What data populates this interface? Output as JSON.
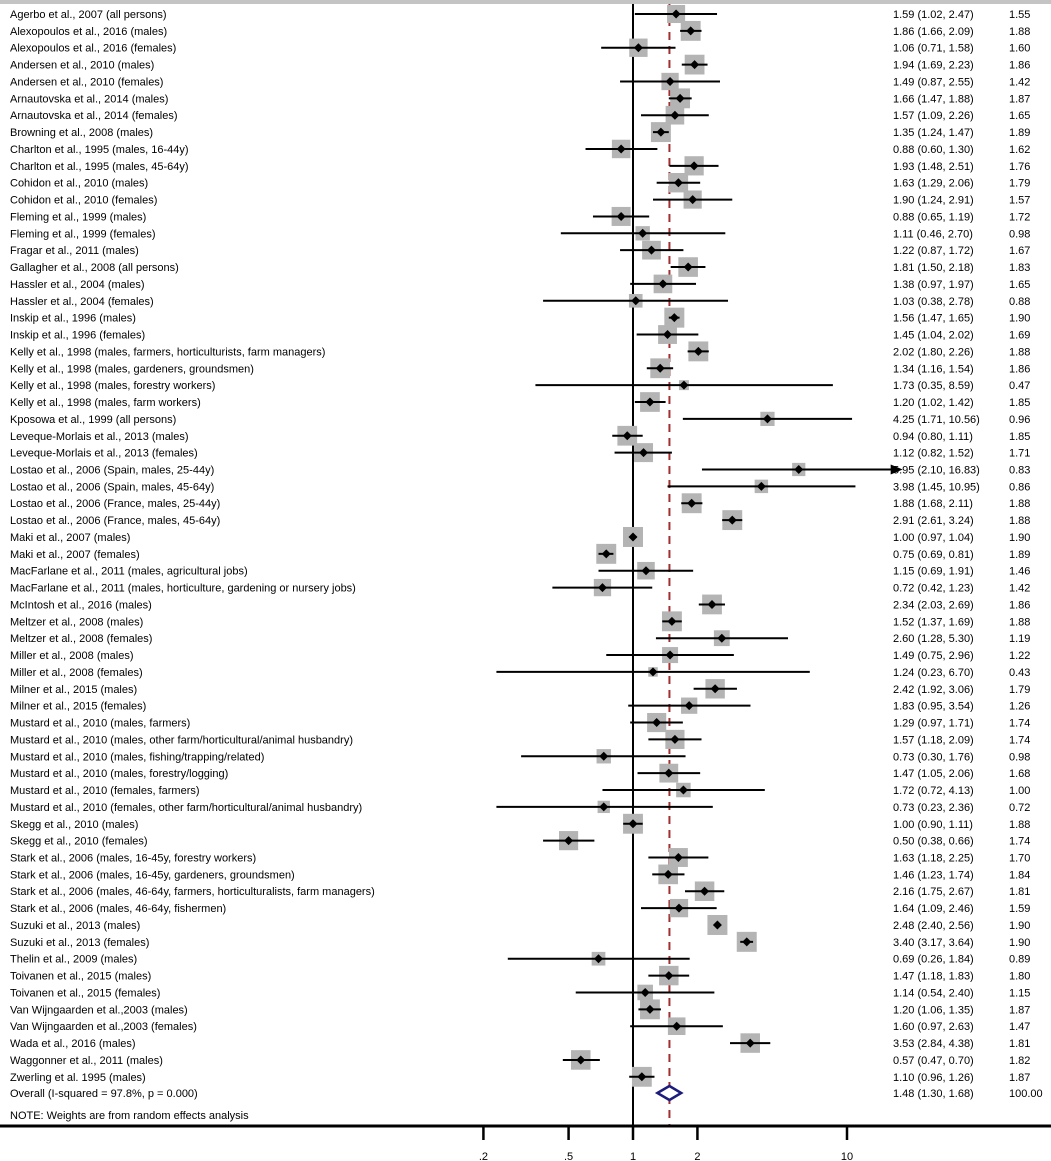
{
  "chart_data": {
    "type": "forest",
    "scale": "log",
    "xticks": [
      0.2,
      0.5,
      1,
      2,
      10
    ],
    "xtick_labels": [
      ".2",
      ".5",
      "1",
      "2",
      "10"
    ],
    "null_line": 1,
    "colors": {
      "box": "#b4b4b4",
      "ci": "#000000",
      "overall_diamond": "#1c1c7c",
      "pooled_line": "#a03030"
    },
    "studies": [
      {
        "label": "Agerbo et al., 2007 (all persons)",
        "es": 1.59,
        "lo": 1.02,
        "hi": 2.47,
        "es_ci": "1.59 (1.02, 2.47)",
        "weight": "1.55"
      },
      {
        "label": "Alexopoulos et al., 2016 (males)",
        "es": 1.86,
        "lo": 1.66,
        "hi": 2.09,
        "es_ci": "1.86 (1.66, 2.09)",
        "weight": "1.88"
      },
      {
        "label": "Alexopoulos et al., 2016 (females)",
        "es": 1.06,
        "lo": 0.71,
        "hi": 1.58,
        "es_ci": "1.06 (0.71, 1.58)",
        "weight": "1.60"
      },
      {
        "label": "Andersen et al., 2010 (males)",
        "es": 1.94,
        "lo": 1.69,
        "hi": 2.23,
        "es_ci": "1.94 (1.69, 2.23)",
        "weight": "1.86"
      },
      {
        "label": "Andersen et al., 2010 (females)",
        "es": 1.49,
        "lo": 0.87,
        "hi": 2.55,
        "es_ci": "1.49 (0.87, 2.55)",
        "weight": "1.42"
      },
      {
        "label": "Arnautovska et al., 2014 (males)",
        "es": 1.66,
        "lo": 1.47,
        "hi": 1.88,
        "es_ci": "1.66 (1.47, 1.88)",
        "weight": "1.87"
      },
      {
        "label": "Arnautovska et al., 2014 (females)",
        "es": 1.57,
        "lo": 1.09,
        "hi": 2.26,
        "es_ci": "1.57 (1.09, 2.26)",
        "weight": "1.65"
      },
      {
        "label": "Browning et al., 2008 (males)",
        "es": 1.35,
        "lo": 1.24,
        "hi": 1.47,
        "es_ci": "1.35 (1.24, 1.47)",
        "weight": "1.89"
      },
      {
        "label": "Charlton et al., 1995 (males, 16-44y)",
        "es": 0.88,
        "lo": 0.6,
        "hi": 1.3,
        "es_ci": "0.88 (0.60, 1.30)",
        "weight": "1.62"
      },
      {
        "label": "Charlton et al., 1995 (males, 45-64y)",
        "es": 1.93,
        "lo": 1.48,
        "hi": 2.51,
        "es_ci": "1.93 (1.48, 2.51)",
        "weight": "1.76"
      },
      {
        "label": "Cohidon et al., 2010 (males)",
        "es": 1.63,
        "lo": 1.29,
        "hi": 2.06,
        "es_ci": "1.63 (1.29, 2.06)",
        "weight": "1.79"
      },
      {
        "label": "Cohidon et al., 2010 (females)",
        "es": 1.9,
        "lo": 1.24,
        "hi": 2.91,
        "es_ci": "1.90 (1.24, 2.91)",
        "weight": "1.57"
      },
      {
        "label": "Fleming et al., 1999 (males)",
        "es": 0.88,
        "lo": 0.65,
        "hi": 1.19,
        "es_ci": "0.88 (0.65, 1.19)",
        "weight": "1.72"
      },
      {
        "label": "Fleming et al., 1999 (females)",
        "es": 1.11,
        "lo": 0.46,
        "hi": 2.7,
        "es_ci": "1.11 (0.46, 2.70)",
        "weight": "0.98"
      },
      {
        "label": "Fragar et al., 2011 (males)",
        "es": 1.22,
        "lo": 0.87,
        "hi": 1.72,
        "es_ci": "1.22 (0.87, 1.72)",
        "weight": "1.67"
      },
      {
        "label": "Gallagher et al., 2008 (all persons)",
        "es": 1.81,
        "lo": 1.5,
        "hi": 2.18,
        "es_ci": "1.81 (1.50, 2.18)",
        "weight": "1.83"
      },
      {
        "label": "Hassler et al., 2004 (males)",
        "es": 1.38,
        "lo": 0.97,
        "hi": 1.97,
        "es_ci": "1.38 (0.97, 1.97)",
        "weight": "1.65"
      },
      {
        "label": "Hassler et al., 2004 (females)",
        "es": 1.03,
        "lo": 0.38,
        "hi": 2.78,
        "es_ci": "1.03 (0.38, 2.78)",
        "weight": "0.88"
      },
      {
        "label": "Inskip et al., 1996 (males)",
        "es": 1.56,
        "lo": 1.47,
        "hi": 1.65,
        "es_ci": "1.56 (1.47, 1.65)",
        "weight": "1.90"
      },
      {
        "label": "Inskip et al., 1996 (females)",
        "es": 1.45,
        "lo": 1.04,
        "hi": 2.02,
        "es_ci": "1.45 (1.04, 2.02)",
        "weight": "1.69"
      },
      {
        "label": "Kelly et al., 1998 (males, farmers, horticulturists, farm managers)",
        "es": 2.02,
        "lo": 1.8,
        "hi": 2.26,
        "es_ci": "2.02 (1.80, 2.26)",
        "weight": "1.88"
      },
      {
        "label": "Kelly et al., 1998 (males, gardeners, groundsmen)",
        "es": 1.34,
        "lo": 1.16,
        "hi": 1.54,
        "es_ci": "1.34 (1.16, 1.54)",
        "weight": "1.86"
      },
      {
        "label": "Kelly et al., 1998 (males, forestry workers)",
        "es": 1.73,
        "lo": 0.35,
        "hi": 8.59,
        "es_ci": "1.73 (0.35, 8.59)",
        "weight": "0.47"
      },
      {
        "label": "Kelly et al., 1998 (males, farm workers)",
        "es": 1.2,
        "lo": 1.02,
        "hi": 1.42,
        "es_ci": "1.20 (1.02, 1.42)",
        "weight": "1.85"
      },
      {
        "label": "Kposowa et al., 1999 (all persons)",
        "es": 4.25,
        "lo": 1.71,
        "hi": 10.56,
        "es_ci": "4.25 (1.71, 10.56)",
        "weight": "0.96"
      },
      {
        "label": "Leveque-Morlais et al., 2013 (males)",
        "es": 0.94,
        "lo": 0.8,
        "hi": 1.11,
        "es_ci": "0.94 (0.80, 1.11)",
        "weight": "1.85"
      },
      {
        "label": "Leveque-Morlais et al., 2013 (females)",
        "es": 1.12,
        "lo": 0.82,
        "hi": 1.52,
        "es_ci": "1.12 (0.82, 1.52)",
        "weight": "1.71"
      },
      {
        "label": "Lostao et al., 2006 (Spain, males, 25-44y)",
        "es": 5.95,
        "lo": 2.1,
        "hi": 16.83,
        "es_ci": "5.95 (2.10, 16.83)",
        "weight": "0.83"
      },
      {
        "label": "Lostao et al., 2006 (Spain, males, 45-64y)",
        "es": 3.98,
        "lo": 1.45,
        "hi": 10.95,
        "es_ci": "3.98 (1.45, 10.95)",
        "weight": "0.86"
      },
      {
        "label": "Lostao et al., 2006 (France, males, 25-44y)",
        "es": 1.88,
        "lo": 1.68,
        "hi": 2.11,
        "es_ci": "1.88 (1.68, 2.11)",
        "weight": "1.88"
      },
      {
        "label": "Lostao et al., 2006 (France, males, 45-64y)",
        "es": 2.91,
        "lo": 2.61,
        "hi": 3.24,
        "es_ci": "2.91 (2.61, 3.24)",
        "weight": "1.88"
      },
      {
        "label": "Maki et al., 2007 (males)",
        "es": 1.0,
        "lo": 0.97,
        "hi": 1.04,
        "es_ci": "1.00 (0.97, 1.04)",
        "weight": "1.90"
      },
      {
        "label": "Maki et al., 2007 (females)",
        "es": 0.75,
        "lo": 0.69,
        "hi": 0.81,
        "es_ci": "0.75 (0.69, 0.81)",
        "weight": "1.89"
      },
      {
        "label": "MacFarlane et al., 2011 (males, agricultural jobs)",
        "es": 1.15,
        "lo": 0.69,
        "hi": 1.91,
        "es_ci": "1.15 (0.69, 1.91)",
        "weight": "1.46"
      },
      {
        "label": "MacFarlane et al., 2011 (males, horticulture, gardening or nursery jobs)",
        "es": 0.72,
        "lo": 0.42,
        "hi": 1.23,
        "es_ci": "0.72 (0.42, 1.23)",
        "weight": "1.42"
      },
      {
        "label": "McIntosh et al., 2016 (males)",
        "es": 2.34,
        "lo": 2.03,
        "hi": 2.69,
        "es_ci": "2.34 (2.03, 2.69)",
        "weight": "1.86"
      },
      {
        "label": "Meltzer et al., 2008 (males)",
        "es": 1.52,
        "lo": 1.37,
        "hi": 1.69,
        "es_ci": "1.52 (1.37, 1.69)",
        "weight": "1.88"
      },
      {
        "label": "Meltzer et al., 2008 (females)",
        "es": 2.6,
        "lo": 1.28,
        "hi": 5.3,
        "es_ci": "2.60 (1.28, 5.30)",
        "weight": "1.19"
      },
      {
        "label": "Miller et al., 2008 (males)",
        "es": 1.49,
        "lo": 0.75,
        "hi": 2.96,
        "es_ci": "1.49 (0.75, 2.96)",
        "weight": "1.22"
      },
      {
        "label": "Miller et al., 2008 (females)",
        "es": 1.24,
        "lo": 0.23,
        "hi": 6.7,
        "es_ci": "1.24 (0.23, 6.70)",
        "weight": "0.43"
      },
      {
        "label": "Milner et al., 2015 (males)",
        "es": 2.42,
        "lo": 1.92,
        "hi": 3.06,
        "es_ci": "2.42 (1.92, 3.06)",
        "weight": "1.79"
      },
      {
        "label": "Milner et al., 2015 (females)",
        "es": 1.83,
        "lo": 0.95,
        "hi": 3.54,
        "es_ci": "1.83 (0.95, 3.54)",
        "weight": "1.26"
      },
      {
        "label": "Mustard et al., 2010 (males, farmers)",
        "es": 1.29,
        "lo": 0.97,
        "hi": 1.71,
        "es_ci": "1.29 (0.97, 1.71)",
        "weight": "1.74"
      },
      {
        "label": "Mustard et al., 2010 (males, other farm/horticultural/animal husbandry)",
        "es": 1.57,
        "lo": 1.18,
        "hi": 2.09,
        "es_ci": "1.57 (1.18, 2.09)",
        "weight": "1.74"
      },
      {
        "label": "Mustard et al., 2010 (males, fishing/trapping/related)",
        "es": 0.73,
        "lo": 0.3,
        "hi": 1.76,
        "es_ci": "0.73 (0.30, 1.76)",
        "weight": "0.98"
      },
      {
        "label": "Mustard et al., 2010 (males, forestry/logging)",
        "es": 1.47,
        "lo": 1.05,
        "hi": 2.06,
        "es_ci": "1.47 (1.05, 2.06)",
        "weight": "1.68"
      },
      {
        "label": "Mustard et al., 2010 (females, farmers)",
        "es": 1.72,
        "lo": 0.72,
        "hi": 4.13,
        "es_ci": "1.72 (0.72, 4.13)",
        "weight": "1.00"
      },
      {
        "label": "Mustard et al., 2010 (females, other farm/horticultural/animal husbandry)",
        "es": 0.73,
        "lo": 0.23,
        "hi": 2.36,
        "es_ci": "0.73 (0.23, 2.36)",
        "weight": "0.72"
      },
      {
        "label": "Skegg et al., 2010 (males)",
        "es": 1.0,
        "lo": 0.9,
        "hi": 1.11,
        "es_ci": "1.00 (0.90, 1.11)",
        "weight": "1.88"
      },
      {
        "label": "Skegg et al., 2010 (females)",
        "es": 0.5,
        "lo": 0.38,
        "hi": 0.66,
        "es_ci": "0.50 (0.38, 0.66)",
        "weight": "1.74"
      },
      {
        "label": "Stark et al., 2006 (males, 16-45y, forestry workers)",
        "es": 1.63,
        "lo": 1.18,
        "hi": 2.25,
        "es_ci": "1.63 (1.18, 2.25)",
        "weight": "1.70"
      },
      {
        "label": "Stark et al., 2006 (males, 16-45y, gardeners, groundsmen)",
        "es": 1.46,
        "lo": 1.23,
        "hi": 1.74,
        "es_ci": "1.46 (1.23, 1.74)",
        "weight": "1.84"
      },
      {
        "label": "Stark et al., 2006 (males, 46-64y, farmers, horticulturalists, farm managers)",
        "es": 2.16,
        "lo": 1.75,
        "hi": 2.67,
        "es_ci": "2.16 (1.75, 2.67)",
        "weight": "1.81"
      },
      {
        "label": "Stark et al., 2006 (males, 46-64y, fishermen)",
        "es": 1.64,
        "lo": 1.09,
        "hi": 2.46,
        "es_ci": "1.64 (1.09, 2.46)",
        "weight": "1.59"
      },
      {
        "label": "Suzuki et al., 2013 (males)",
        "es": 2.48,
        "lo": 2.4,
        "hi": 2.56,
        "es_ci": "2.48 (2.40, 2.56)",
        "weight": "1.90"
      },
      {
        "label": "Suzuki et al., 2013 (females)",
        "es": 3.4,
        "lo": 3.17,
        "hi": 3.64,
        "es_ci": "3.40 (3.17, 3.64)",
        "weight": "1.90"
      },
      {
        "label": "Thelin et al., 2009 (males)",
        "es": 0.69,
        "lo": 0.26,
        "hi": 1.84,
        "es_ci": "0.69 (0.26, 1.84)",
        "weight": "0.89"
      },
      {
        "label": "Toivanen et al., 2015 (males)",
        "es": 1.47,
        "lo": 1.18,
        "hi": 1.83,
        "es_ci": "1.47 (1.18, 1.83)",
        "weight": "1.80"
      },
      {
        "label": "Toivanen et al., 2015 (females)",
        "es": 1.14,
        "lo": 0.54,
        "hi": 2.4,
        "es_ci": "1.14 (0.54, 2.40)",
        "weight": "1.15"
      },
      {
        "label": "Van Wijngaarden et al.,2003 (males)",
        "es": 1.2,
        "lo": 1.06,
        "hi": 1.35,
        "es_ci": "1.20 (1.06, 1.35)",
        "weight": "1.87"
      },
      {
        "label": "Van Wijngaarden et al.,2003 (females)",
        "es": 1.6,
        "lo": 0.97,
        "hi": 2.63,
        "es_ci": "1.60 (0.97, 2.63)",
        "weight": "1.47"
      },
      {
        "label": "Wada et al., 2016 (males)",
        "es": 3.53,
        "lo": 2.84,
        "hi": 4.38,
        "es_ci": "3.53 (2.84, 4.38)",
        "weight": "1.81"
      },
      {
        "label": "Waggonner et al., 2011 (males)",
        "es": 0.57,
        "lo": 0.47,
        "hi": 0.7,
        "es_ci": "0.57 (0.47, 0.70)",
        "weight": "1.82"
      },
      {
        "label": "Zwerling et al. 1995 (males)",
        "es": 1.1,
        "lo": 0.96,
        "hi": 1.26,
        "es_ci": "1.10 (0.96, 1.26)",
        "weight": "1.87"
      }
    ],
    "overall": {
      "label": "Overall  (I-squared = 97.8%, p = 0.000)",
      "es": 1.48,
      "lo": 1.3,
      "hi": 1.68,
      "es_ci": "1.48 (1.30, 1.68)",
      "weight": "100.00"
    },
    "note": "NOTE: Weights are from random effects analysis"
  }
}
